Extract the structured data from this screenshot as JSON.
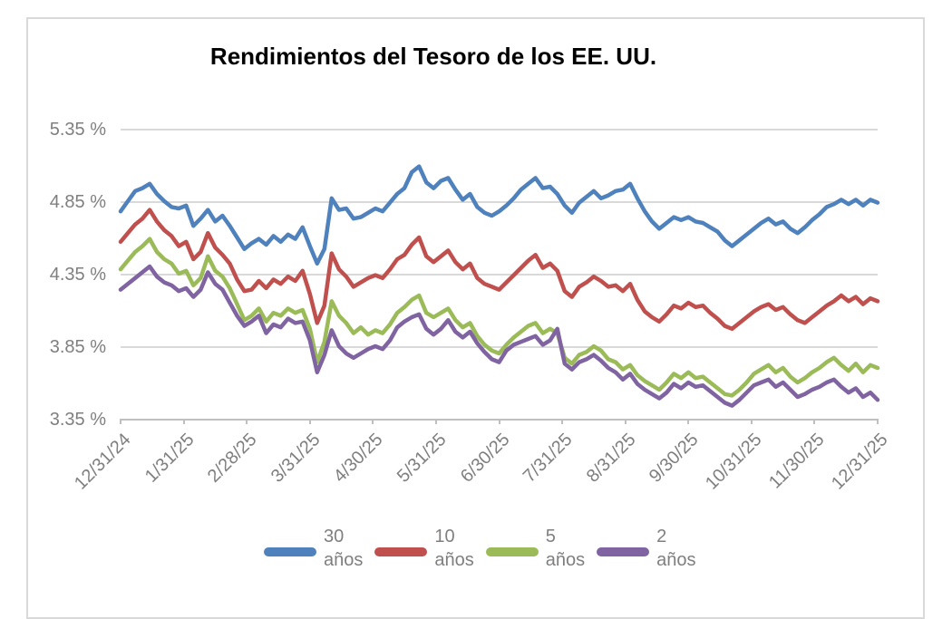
{
  "chart_data": {
    "type": "line",
    "title": "Rendimientos del Tesoro de los EE. UU.",
    "xlabel": "",
    "ylabel": "",
    "ylim": [
      3.35,
      5.35
    ],
    "y_ticks": [
      5.35,
      4.85,
      4.35,
      3.85,
      3.35
    ],
    "y_tick_labels": [
      "5.35 %",
      "4.85 %",
      "4.35 %",
      "3.85 %",
      "3.35 %"
    ],
    "x_tick_labels": [
      "12/31/24",
      "1/31/25",
      "2/28/25",
      "3/31/25",
      "4/30/25",
      "5/31/25",
      "6/30/25",
      "7/31/25",
      "8/31/25",
      "9/30/25",
      "10/31/25",
      "11/30/25",
      "12/31/25"
    ],
    "grid": "horizontal",
    "legend_position": "bottom",
    "axis_color": "#bfbfbf",
    "grid_color": "#d9d9d9",
    "label_color": "#7f7f7f",
    "series": [
      {
        "name": "30 años",
        "legend_line1": "30",
        "legend_line2": "años",
        "color": "#4F81BD",
        "values": [
          4.78,
          4.85,
          4.92,
          4.94,
          4.97,
          4.9,
          4.85,
          4.81,
          4.8,
          4.82,
          4.68,
          4.73,
          4.79,
          4.71,
          4.75,
          4.68,
          4.6,
          4.52,
          4.56,
          4.59,
          4.55,
          4.61,
          4.57,
          4.62,
          4.59,
          4.67,
          4.54,
          4.42,
          4.52,
          4.87,
          4.79,
          4.8,
          4.73,
          4.74,
          4.77,
          4.8,
          4.78,
          4.84,
          4.9,
          4.94,
          5.05,
          5.09,
          4.98,
          4.94,
          4.99,
          5.01,
          4.93,
          4.86,
          4.9,
          4.81,
          4.77,
          4.75,
          4.78,
          4.82,
          4.87,
          4.93,
          4.97,
          5.01,
          4.94,
          4.95,
          4.9,
          4.82,
          4.77,
          4.84,
          4.88,
          4.92,
          4.87,
          4.89,
          4.92,
          4.93,
          4.97,
          4.87,
          4.78,
          4.71,
          4.66,
          4.7,
          4.74,
          4.72,
          4.74,
          4.71,
          4.7,
          4.67,
          4.64,
          4.58,
          4.54,
          4.58,
          4.62,
          4.66,
          4.7,
          4.73,
          4.69,
          4.71,
          4.66,
          4.63,
          4.67,
          4.72,
          4.76,
          4.81,
          4.83,
          4.86,
          4.83,
          4.86,
          4.82,
          4.86,
          4.84
        ]
      },
      {
        "name": "10 años",
        "legend_line1": "10",
        "legend_line2": "años",
        "color": "#C0504D",
        "values": [
          4.57,
          4.63,
          4.69,
          4.73,
          4.79,
          4.71,
          4.65,
          4.61,
          4.54,
          4.57,
          4.45,
          4.5,
          4.63,
          4.53,
          4.48,
          4.42,
          4.31,
          4.23,
          4.24,
          4.3,
          4.25,
          4.31,
          4.28,
          4.33,
          4.3,
          4.37,
          4.21,
          4.01,
          4.13,
          4.49,
          4.38,
          4.33,
          4.26,
          4.29,
          4.32,
          4.34,
          4.32,
          4.38,
          4.45,
          4.48,
          4.55,
          4.6,
          4.47,
          4.43,
          4.47,
          4.51,
          4.43,
          4.38,
          4.42,
          4.32,
          4.28,
          4.26,
          4.24,
          4.29,
          4.34,
          4.39,
          4.44,
          4.48,
          4.39,
          4.42,
          4.37,
          4.23,
          4.19,
          4.26,
          4.29,
          4.33,
          4.3,
          4.26,
          4.27,
          4.23,
          4.28,
          4.17,
          4.09,
          4.05,
          4.02,
          4.07,
          4.13,
          4.11,
          4.15,
          4.12,
          4.13,
          4.08,
          4.04,
          3.99,
          3.97,
          4.01,
          4.05,
          4.09,
          4.12,
          4.14,
          4.1,
          4.12,
          4.07,
          4.03,
          4.01,
          4.05,
          4.09,
          4.13,
          4.16,
          4.2,
          4.16,
          4.19,
          4.14,
          4.18,
          4.16
        ]
      },
      {
        "name": "5 años",
        "legend_line1": "5",
        "legend_line2": "años",
        "color": "#9BBB59",
        "values": [
          4.38,
          4.44,
          4.5,
          4.54,
          4.59,
          4.5,
          4.45,
          4.42,
          4.35,
          4.37,
          4.27,
          4.32,
          4.47,
          4.37,
          4.33,
          4.25,
          4.14,
          4.03,
          4.06,
          4.11,
          4.02,
          4.08,
          4.06,
          4.11,
          4.08,
          4.1,
          3.97,
          3.74,
          3.88,
          4.16,
          4.06,
          4.01,
          3.94,
          3.98,
          3.93,
          3.96,
          3.94,
          4.0,
          4.08,
          4.12,
          4.17,
          4.2,
          4.08,
          4.05,
          4.08,
          4.11,
          4.03,
          3.98,
          4.01,
          3.92,
          3.86,
          3.82,
          3.8,
          3.86,
          3.91,
          3.95,
          3.99,
          4.01,
          3.94,
          3.97,
          3.94,
          3.77,
          3.73,
          3.79,
          3.81,
          3.85,
          3.82,
          3.76,
          3.74,
          3.69,
          3.72,
          3.65,
          3.61,
          3.58,
          3.55,
          3.6,
          3.66,
          3.63,
          3.67,
          3.63,
          3.64,
          3.6,
          3.56,
          3.52,
          3.51,
          3.55,
          3.6,
          3.66,
          3.69,
          3.72,
          3.67,
          3.7,
          3.64,
          3.6,
          3.63,
          3.67,
          3.7,
          3.74,
          3.77,
          3.72,
          3.68,
          3.73,
          3.67,
          3.72,
          3.7
        ]
      },
      {
        "name": "2 años",
        "legend_line1": "2",
        "legend_line2": "años",
        "color": "#8064A2",
        "values": [
          4.24,
          4.28,
          4.32,
          4.36,
          4.4,
          4.33,
          4.29,
          4.27,
          4.23,
          4.25,
          4.19,
          4.24,
          4.36,
          4.28,
          4.24,
          4.15,
          4.06,
          3.99,
          4.02,
          4.06,
          3.94,
          4.0,
          3.98,
          4.04,
          4.01,
          4.02,
          3.89,
          3.67,
          3.79,
          3.96,
          3.85,
          3.8,
          3.77,
          3.8,
          3.83,
          3.85,
          3.83,
          3.89,
          3.98,
          4.02,
          4.05,
          4.07,
          3.97,
          3.93,
          3.97,
          4.03,
          3.95,
          3.91,
          3.95,
          3.87,
          3.81,
          3.76,
          3.74,
          3.82,
          3.86,
          3.88,
          3.9,
          3.92,
          3.86,
          3.89,
          3.97,
          3.73,
          3.69,
          3.74,
          3.76,
          3.79,
          3.75,
          3.7,
          3.67,
          3.62,
          3.66,
          3.59,
          3.55,
          3.52,
          3.49,
          3.53,
          3.59,
          3.56,
          3.6,
          3.57,
          3.58,
          3.54,
          3.5,
          3.46,
          3.44,
          3.48,
          3.53,
          3.58,
          3.6,
          3.62,
          3.57,
          3.6,
          3.55,
          3.5,
          3.52,
          3.55,
          3.57,
          3.6,
          3.62,
          3.57,
          3.53,
          3.56,
          3.5,
          3.53,
          3.48
        ]
      }
    ]
  }
}
